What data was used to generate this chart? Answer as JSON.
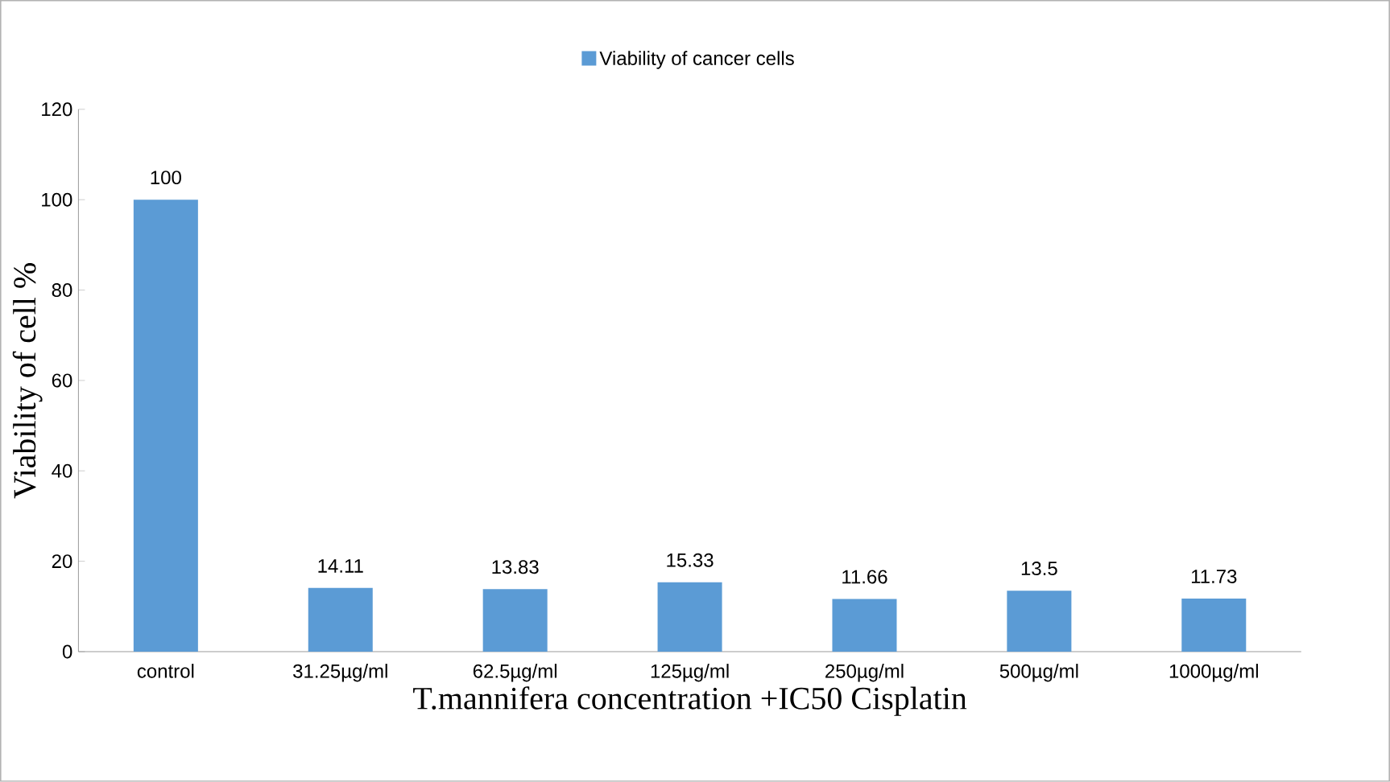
{
  "chart_data": {
    "type": "bar",
    "xlabel": "T.mannifera concentration +IC50 Cisplatin",
    "ylabel": "Viability of cell %",
    "categories": [
      "control",
      "31.25µg/ml",
      "62.5µg/ml",
      "125µg/ml",
      "250µg/ml",
      "500µg/ml",
      "1000µg/ml"
    ],
    "series": [
      {
        "name": "Viability of cancer cells",
        "color": "#5b9bd5",
        "values": [
          100,
          14.11,
          13.83,
          15.33,
          11.66,
          13.5,
          11.73
        ]
      }
    ],
    "ylim": [
      0,
      120
    ],
    "yticks": [
      0,
      20,
      40,
      60,
      80,
      100,
      120
    ],
    "data_labels": true,
    "legend": "top",
    "grid": false
  }
}
